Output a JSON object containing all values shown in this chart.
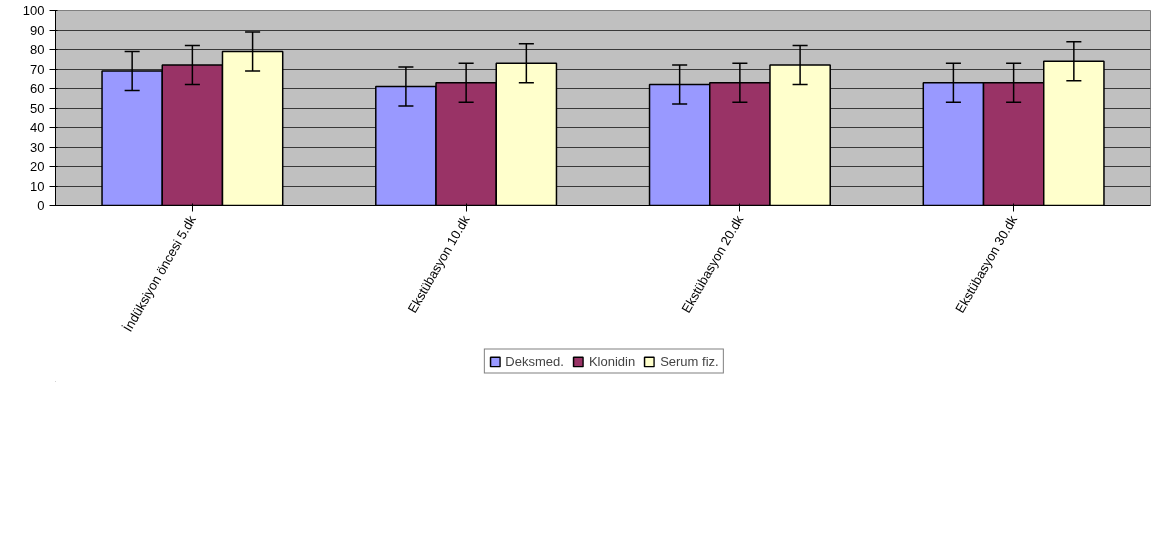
{
  "chart_data": {
    "type": "bar",
    "categories": [
      "İndüksiyon öncesi 5.dk",
      "Ekstübasyon 10.dk",
      "Ekstübasyon 20.dk",
      "Ekstübasyon 30.dk"
    ],
    "series": [
      {
        "name": "Deksmed.",
        "color": "#9999ff",
        "values": [
          69,
          61,
          62,
          63
        ],
        "errors": [
          10,
          10,
          10,
          10
        ]
      },
      {
        "name": "Klonidin",
        "color": "#993366",
        "values": [
          72,
          63,
          63,
          63
        ],
        "errors": [
          10,
          10,
          10,
          10
        ]
      },
      {
        "name": "Serum fiz.",
        "color": "#ffffcc",
        "values": [
          79,
          73,
          72,
          74
        ],
        "errors": [
          10,
          10,
          10,
          10
        ]
      }
    ],
    "ylim": [
      0,
      100
    ],
    "yticks": [
      0,
      10,
      20,
      30,
      40,
      50,
      60,
      70,
      80,
      90,
      100
    ],
    "grid": "y",
    "legend": "bottom"
  }
}
